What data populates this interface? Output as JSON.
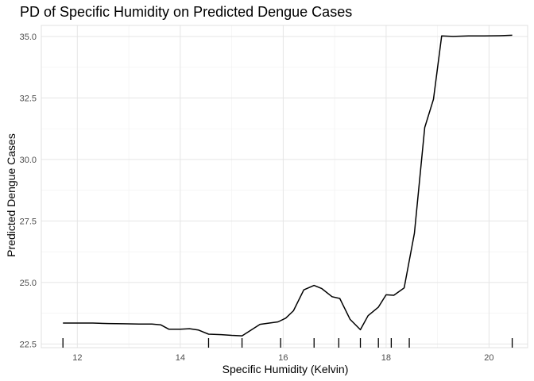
{
  "chart_data": {
    "type": "line",
    "title": "PD of Specific Humidity on Predicted Dengue Cases",
    "xlabel": "Specific Humidity (Kelvin)",
    "ylabel": "Predicted Dengue Cases",
    "xlim": [
      11.3,
      20.75
    ],
    "ylim": [
      22.35,
      35.45
    ],
    "x_ticks": [
      12,
      14,
      16,
      18,
      20
    ],
    "y_ticks": [
      22.5,
      25.0,
      27.5,
      30.0,
      32.5,
      35.0
    ],
    "x_tick_labels": [
      "12",
      "14",
      "16",
      "18",
      "20"
    ],
    "y_tick_labels": [
      "22.5",
      "25.0",
      "27.5",
      "30.0",
      "32.5",
      "35.0"
    ],
    "grid": true,
    "legend": "none",
    "series": [
      {
        "x": [
          11.72,
          12.0,
          12.3,
          12.6,
          12.9,
          13.2,
          13.45,
          13.62,
          13.78,
          14.0,
          14.18,
          14.35,
          14.55,
          14.8,
          15.0,
          15.2,
          15.55,
          15.9,
          16.05,
          16.2,
          16.4,
          16.6,
          16.75,
          16.95,
          17.1,
          17.3,
          17.5,
          17.65,
          17.85,
          18.0,
          18.15,
          18.35,
          18.55,
          18.75,
          18.92,
          19.08,
          19.3,
          19.6,
          19.9,
          20.2,
          20.45
        ],
        "y": [
          23.35,
          23.35,
          23.35,
          23.33,
          23.32,
          23.31,
          23.31,
          23.28,
          23.1,
          23.1,
          23.12,
          23.07,
          22.9,
          22.88,
          22.85,
          22.83,
          23.3,
          23.4,
          23.55,
          23.85,
          24.7,
          24.88,
          24.75,
          24.42,
          24.35,
          23.5,
          23.08,
          23.65,
          24.0,
          24.5,
          24.48,
          24.78,
          27.0,
          31.3,
          32.45,
          35.02,
          35.0,
          35.02,
          35.02,
          35.03,
          35.05
        ]
      }
    ],
    "rug_x": [
      11.72,
      14.55,
      15.2,
      15.95,
      16.6,
      17.08,
      17.5,
      17.85,
      18.1,
      18.45,
      20.45
    ]
  }
}
